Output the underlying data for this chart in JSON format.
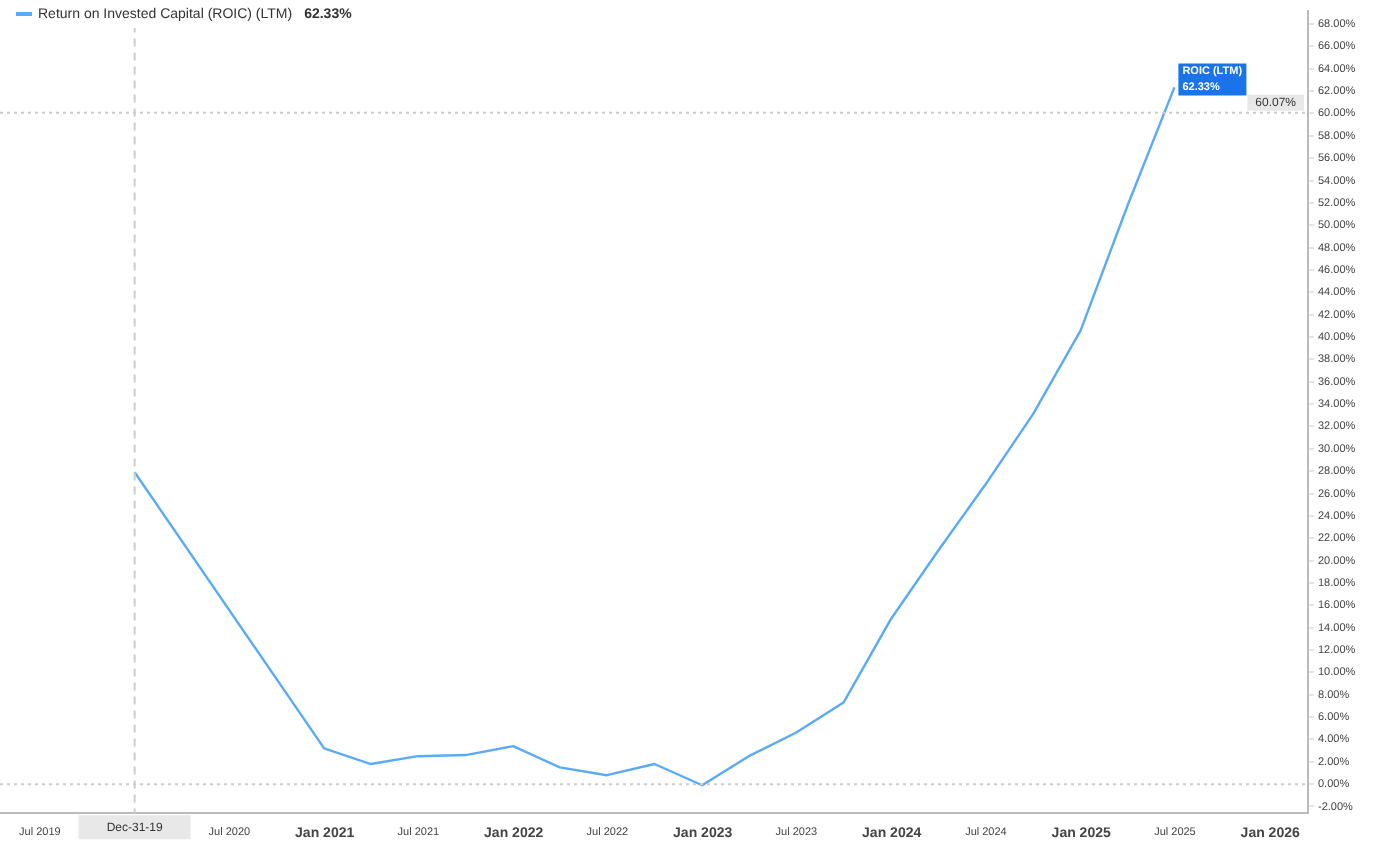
{
  "chart_data": {
    "type": "line",
    "legend": "top left",
    "annotations": [
      "62.33%",
      {
        "text": "ROIC (LTM)",
        "x": "2025-06-30",
        "y": 62.33
      }
    ],
    "x": [
      "2019-12-31",
      "2020-12-31",
      "2021-03-31",
      "2021-06-30",
      "2021-09-30",
      "2021-12-31",
      "2022-03-31",
      "2022-06-30",
      "2022-09-30",
      "2022-12-31",
      "2023-03-31",
      "2023-06-30",
      "2023-09-30",
      "2023-12-31",
      "2024-03-31",
      "2024-06-30",
      "2024-09-30",
      "2024-12-31",
      "2025-03-31",
      "2025-06-30"
    ],
    "series": [
      {
        "name": "Return on Invested Capital (ROIC) (LTM)",
        "color": "#5aabf7",
        "values": [
          27.9,
          3.2,
          1.8,
          2.5,
          2.6,
          3.4,
          1.5,
          0.8,
          1.8,
          -0.1,
          2.5,
          4.6,
          7.3,
          14.8,
          20.9,
          26.8,
          33.1,
          40.6,
          51.7,
          62.33
        ],
        "value_labels": [
          null,
          null,
          null,
          null,
          null,
          null,
          null,
          null,
          null,
          null,
          null,
          null,
          null,
          null,
          null,
          null,
          null,
          null,
          null,
          "62.33%"
        ]
      }
    ],
    "marker": "none",
    "line_style": "solid",
    "grid": false,
    "xlim": [
      "2019-04-15",
      "2026-03-15"
    ],
    "xticks": [
      {
        "value": "2019-07-01",
        "label": "Jul 2019"
      },
      {
        "value": "2020-07-01",
        "label": "Jul 2020"
      },
      {
        "value": "2021-01-01",
        "label": "Jan 2021"
      },
      {
        "value": "2021-07-01",
        "label": "Jul 2021"
      },
      {
        "value": "2022-01-01",
        "label": "Jan 2022"
      },
      {
        "value": "2022-07-01",
        "label": "Jul 2022"
      },
      {
        "value": "2023-01-01",
        "label": "Jan 2023"
      },
      {
        "value": "2023-07-01",
        "label": "Jul 2023"
      },
      {
        "value": "2024-01-01",
        "label": "Jan 2024"
      },
      {
        "value": "2024-07-01",
        "label": "Jul 2024"
      },
      {
        "value": "2025-01-01",
        "label": "Jan 2025"
      },
      {
        "value": "2025-07-01",
        "label": "Jul 2025"
      },
      {
        "value": "2026-01-01",
        "label": "Jan 2026"
      }
    ],
    "ylim": [
      -2.6,
      69.2
    ],
    "yticks": [
      {
        "value": -2,
        "label": "-2.00%"
      },
      {
        "value": 0,
        "label": "0.00%"
      },
      {
        "value": 2,
        "label": "2.00%"
      },
      {
        "value": 4,
        "label": "4.00%"
      },
      {
        "value": 6,
        "label": "6.00%"
      },
      {
        "value": 8,
        "label": "8.00%"
      },
      {
        "value": 10,
        "label": "10.00%"
      },
      {
        "value": 12,
        "label": "12.00%"
      },
      {
        "value": 14,
        "label": "14.00%"
      },
      {
        "value": 16,
        "label": "16.00%"
      },
      {
        "value": 18,
        "label": "18.00%"
      },
      {
        "value": 20,
        "label": "20.00%"
      },
      {
        "value": 22,
        "label": "22.00%"
      },
      {
        "value": 24,
        "label": "24.00%"
      },
      {
        "value": 26,
        "label": "26.00%"
      },
      {
        "value": 28,
        "label": "28.00%"
      },
      {
        "value": 30,
        "label": "30.00%"
      },
      {
        "value": 32,
        "label": "32.00%"
      },
      {
        "value": 34,
        "label": "34.00%"
      },
      {
        "value": 36,
        "label": "36.00%"
      },
      {
        "value": 38,
        "label": "38.00%"
      },
      {
        "value": 40,
        "label": "40.00%"
      },
      {
        "value": 42,
        "label": "42.00%"
      },
      {
        "value": 44,
        "label": "44.00%"
      },
      {
        "value": 46,
        "label": "46.00%"
      },
      {
        "value": 48,
        "label": "48.00%"
      },
      {
        "value": 50,
        "label": "50.00%"
      },
      {
        "value": 52,
        "label": "52.00%"
      },
      {
        "value": 54,
        "label": "54.00%"
      },
      {
        "value": 56,
        "label": "56.00%"
      },
      {
        "value": 58,
        "label": "58.00%"
      },
      {
        "value": 60,
        "label": "60.00%"
      },
      {
        "value": 62,
        "label": "62.00%"
      },
      {
        "value": 64,
        "label": "64.00%"
      },
      {
        "value": 66,
        "label": "66.00%"
      },
      {
        "value": 68,
        "label": "68.00%"
      }
    ],
    "ref_lines": [
      {
        "axis": "y",
        "value": 0,
        "line_style": "dotted",
        "color": "#cccccc"
      },
      {
        "axis": "x",
        "value": "2019-12-31",
        "label": "Dec-31-19",
        "line_style": "dashed",
        "color": "#cccccc"
      },
      {
        "axis": "y",
        "value": 60.07,
        "label": "60.07%",
        "line_style": "dotted",
        "color": "#cccccc"
      }
    ]
  }
}
